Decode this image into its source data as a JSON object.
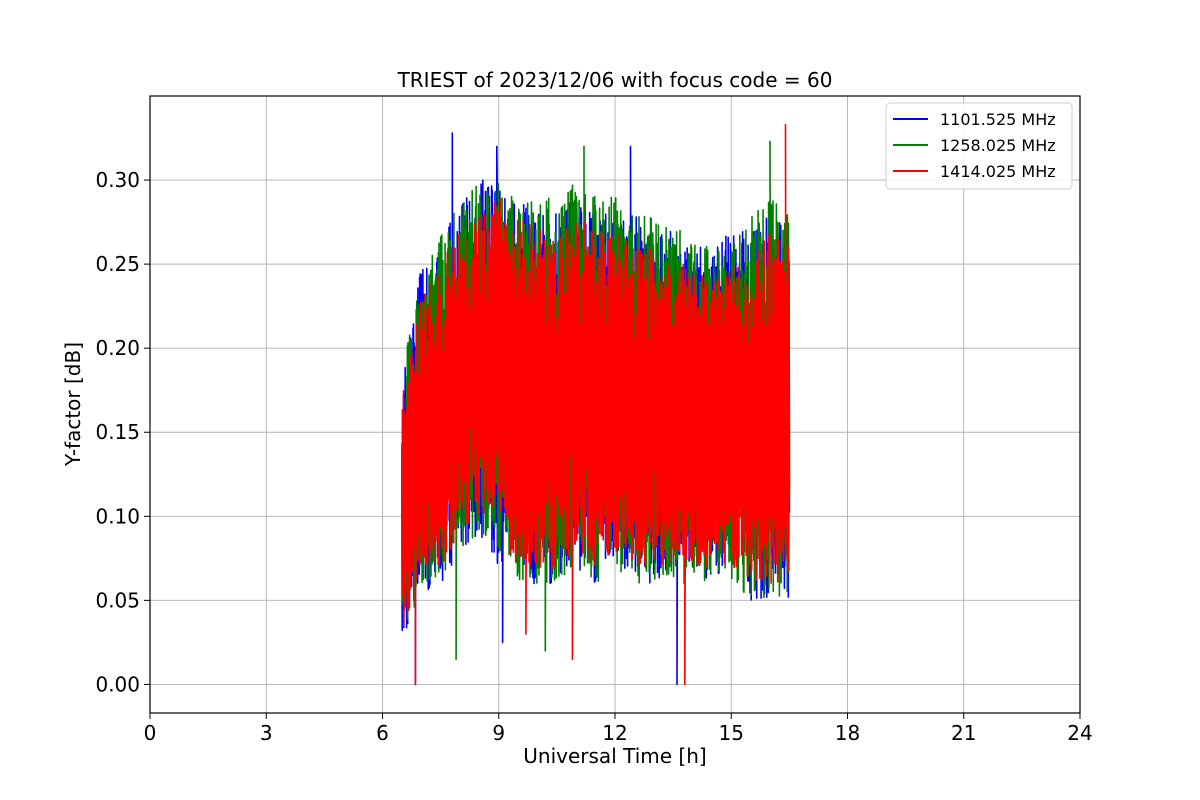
{
  "chart_data": {
    "type": "line",
    "title": "TRIEST of 2023/12/06 with focus code = 60",
    "xlabel": "Universal Time [h]",
    "ylabel": "Y-factor [dB]",
    "xlim": [
      0,
      24
    ],
    "ylim": [
      -0.017,
      0.35
    ],
    "xticks": [
      0,
      3,
      6,
      9,
      12,
      15,
      18,
      21,
      24
    ],
    "xtick_labels": [
      "0",
      "3",
      "6",
      "9",
      "12",
      "15",
      "18",
      "21",
      "24"
    ],
    "yticks": [
      0.0,
      0.05,
      0.1,
      0.15,
      0.2,
      0.25,
      0.3
    ],
    "ytick_labels": [
      "0.00",
      "0.05",
      "0.10",
      "0.15",
      "0.20",
      "0.25",
      "0.30"
    ],
    "grid": true,
    "legend_position": "top-right",
    "series": [
      {
        "name": "1101.525 MHz",
        "color": "#0000ff",
        "x_range": [
          6.5,
          16.5
        ],
        "band_low": [
          0.02,
          0.06,
          0.05,
          0.08,
          0.09,
          0.07,
          0.06,
          0.05,
          0.06,
          0.07,
          0.06,
          0.07,
          0.06,
          0.06,
          0.07,
          0.07,
          0.06,
          0.07,
          0.05,
          0.05,
          0.05
        ],
        "band_high": [
          0.18,
          0.25,
          0.26,
          0.29,
          0.3,
          0.3,
          0.29,
          0.28,
          0.28,
          0.29,
          0.28,
          0.28,
          0.28,
          0.27,
          0.27,
          0.26,
          0.26,
          0.27,
          0.27,
          0.28,
          0.27
        ],
        "extremes": [
          [
            7.8,
            0.328
          ],
          [
            8.95,
            0.32
          ],
          [
            12.4,
            0.32
          ],
          [
            13.6,
            0.0
          ],
          [
            9.1,
            0.025
          ],
          [
            6.85,
            0.0
          ]
        ]
      },
      {
        "name": "1258.025 MHz",
        "color": "#008000",
        "x_range": [
          6.5,
          16.5
        ],
        "band_low": [
          0.02,
          0.06,
          0.06,
          0.08,
          0.09,
          0.08,
          0.06,
          0.05,
          0.06,
          0.07,
          0.06,
          0.07,
          0.06,
          0.06,
          0.06,
          0.06,
          0.06,
          0.06,
          0.05,
          0.05,
          0.05
        ],
        "band_high": [
          0.19,
          0.24,
          0.27,
          0.29,
          0.3,
          0.3,
          0.29,
          0.29,
          0.29,
          0.3,
          0.29,
          0.29,
          0.28,
          0.28,
          0.27,
          0.27,
          0.26,
          0.26,
          0.28,
          0.29,
          0.28
        ],
        "extremes": [
          [
            11.2,
            0.32
          ],
          [
            16.0,
            0.323
          ],
          [
            7.9,
            0.015
          ],
          [
            10.2,
            0.02
          ],
          [
            9.0,
            0.13
          ]
        ]
      },
      {
        "name": "1414.025 MHz",
        "color": "#ff0000",
        "x_range": [
          6.5,
          16.5
        ],
        "band_low": [
          0.02,
          0.07,
          0.07,
          0.09,
          0.1,
          0.09,
          0.07,
          0.06,
          0.07,
          0.08,
          0.07,
          0.08,
          0.07,
          0.07,
          0.07,
          0.07,
          0.07,
          0.07,
          0.06,
          0.06,
          0.06
        ],
        "band_high": [
          0.17,
          0.23,
          0.25,
          0.27,
          0.28,
          0.29,
          0.28,
          0.27,
          0.27,
          0.28,
          0.27,
          0.27,
          0.26,
          0.26,
          0.25,
          0.25,
          0.24,
          0.25,
          0.25,
          0.27,
          0.26
        ],
        "extremes": [
          [
            16.4,
            0.333
          ],
          [
            6.85,
            0.0
          ],
          [
            10.9,
            0.015
          ],
          [
            13.8,
            0.0
          ],
          [
            9.7,
            0.03
          ]
        ]
      }
    ]
  }
}
